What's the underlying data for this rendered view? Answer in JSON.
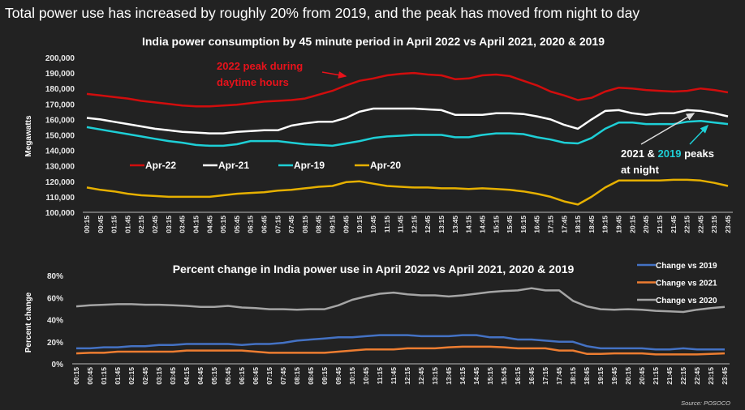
{
  "headline": "Total power use has increased by roughly 20% from 2019, and the peak has moved from night to day",
  "source": "Source: POSOCO",
  "chart_data": [
    {
      "type": "line",
      "title": "India power consumption by 45 minute period in April 2022 vs April 2021, 2020 & 2019",
      "xlabel": "",
      "ylabel": "Megawatts",
      "ylim": [
        100000,
        200000
      ],
      "yticks": [
        "100,000",
        "110,000",
        "120,000",
        "130,000",
        "140,000",
        "150,000",
        "160,000",
        "170,000",
        "180,000",
        "190,000",
        "200,000"
      ],
      "grid": false,
      "legend": "middle-left",
      "x": [
        "00:15",
        "00:45",
        "01:15",
        "01:45",
        "02:15",
        "02:45",
        "03:15",
        "03:45",
        "04:15",
        "04:45",
        "05:15",
        "05:45",
        "06:15",
        "06:45",
        "07:15",
        "07:45",
        "08:15",
        "08:45",
        "09:15",
        "09:45",
        "10:15",
        "10:45",
        "11:15",
        "11:45",
        "12:15",
        "12:45",
        "13:15",
        "13:45",
        "14:15",
        "14:45",
        "15:15",
        "15:45",
        "16:15",
        "16:45",
        "17:15",
        "17:45",
        "18:15",
        "18:45",
        "19:15",
        "19:45",
        "20:15",
        "20:45",
        "21:15",
        "21:45",
        "22:15",
        "22:45",
        "23:15",
        "23:45"
      ],
      "series": [
        {
          "name": "Apr-22",
          "color": "#d10d0d",
          "values": [
            176500,
            175500,
            174500,
            173500,
            172000,
            171000,
            170000,
            169000,
            168500,
            168500,
            169000,
            169500,
            170500,
            171500,
            172000,
            172500,
            173500,
            176000,
            178500,
            182000,
            185000,
            186500,
            188500,
            189500,
            190000,
            189000,
            188500,
            186000,
            186500,
            188500,
            189000,
            188000,
            185000,
            182000,
            178000,
            175500,
            172500,
            174000,
            178000,
            180500,
            180000,
            179000,
            178500,
            178000,
            178500,
            180000,
            179000,
            177500
          ]
        },
        {
          "name": "Apr-21",
          "color": "#ffffff",
          "values": [
            161000,
            160000,
            158500,
            157000,
            155500,
            154000,
            153000,
            152000,
            151500,
            151000,
            151000,
            152000,
            152500,
            153000,
            153000,
            156000,
            157500,
            158500,
            158500,
            161000,
            165000,
            167000,
            167000,
            167000,
            167000,
            166500,
            166000,
            163000,
            163000,
            163000,
            164000,
            164000,
            163500,
            162000,
            160000,
            156500,
            154000,
            160000,
            165500,
            166000,
            164000,
            163000,
            164000,
            164000,
            166000,
            165500,
            164000,
            162000
          ]
        },
        {
          "name": "Apr-19",
          "color": "#1ecfd6",
          "values": [
            155000,
            153500,
            152000,
            150500,
            149000,
            147500,
            146000,
            145000,
            143500,
            143000,
            143000,
            144000,
            146000,
            146000,
            146000,
            145000,
            144000,
            143500,
            143000,
            144500,
            146000,
            148000,
            149000,
            149500,
            150000,
            150000,
            150000,
            148500,
            148500,
            150000,
            151000,
            151000,
            150500,
            148500,
            147000,
            145000,
            144500,
            148000,
            154000,
            158000,
            158000,
            157000,
            157000,
            157000,
            158500,
            159000,
            158000,
            157000
          ]
        },
        {
          "name": "Apr-20",
          "color": "#e6b000",
          "values": [
            116000,
            114500,
            113500,
            112000,
            111000,
            110500,
            110000,
            110000,
            110000,
            110000,
            111000,
            112000,
            112500,
            113000,
            114000,
            114500,
            115500,
            116500,
            117000,
            119500,
            120000,
            118500,
            117000,
            116500,
            116000,
            116000,
            115500,
            115500,
            115000,
            115500,
            115000,
            114500,
            113500,
            112000,
            110000,
            107000,
            105000,
            110000,
            116000,
            120500,
            120500,
            120500,
            120500,
            121000,
            121000,
            120500,
            119000,
            117000
          ]
        }
      ],
      "annotations": [
        {
          "text_lines": [
            "2022 peak during",
            "daytime hours"
          ],
          "color": "#e8121b"
        },
        {
          "text_parts": [
            "2021 & ",
            "2019",
            " peaks"
          ],
          "text_line2": "at night",
          "colors": [
            "#ffffff",
            "#1ecfd6",
            "#ffffff"
          ]
        }
      ]
    },
    {
      "type": "line",
      "title": "Percent change in India power use in April 2022 vs April 2021, 2020 & 2019",
      "xlabel": "",
      "ylabel": "Percent change",
      "ylim": [
        0,
        80
      ],
      "yticks": [
        "0%",
        "20%",
        "40%",
        "60%",
        "80%"
      ],
      "grid": false,
      "legend": "top-right",
      "x": [
        "00:15",
        "00:45",
        "01:15",
        "01:45",
        "02:15",
        "02:45",
        "03:15",
        "03:45",
        "04:15",
        "04:45",
        "05:15",
        "05:45",
        "06:15",
        "06:45",
        "07:15",
        "07:45",
        "08:15",
        "08:45",
        "09:15",
        "09:45",
        "10:15",
        "10:45",
        "11:15",
        "11:45",
        "12:15",
        "12:45",
        "13:15",
        "13:45",
        "14:15",
        "14:45",
        "15:15",
        "15:45",
        "16:15",
        "16:45",
        "17:15",
        "17:45",
        "18:15",
        "18:45",
        "19:15",
        "19:45",
        "20:15",
        "20:45",
        "21:15",
        "21:45",
        "22:15",
        "22:45",
        "23:15",
        "23:45"
      ],
      "series": [
        {
          "name": "Change vs 2019",
          "color": "#4472c4",
          "values": [
            14,
            14,
            15,
            15,
            16,
            16,
            17,
            17,
            18,
            18,
            18,
            18,
            17,
            18,
            18,
            19,
            21,
            22,
            23,
            24,
            24,
            25,
            26,
            26,
            26,
            25,
            25,
            25,
            26,
            26,
            24,
            24,
            22,
            22,
            21,
            20,
            20,
            16,
            14,
            14,
            14,
            14,
            13,
            13,
            14,
            13,
            13,
            13
          ]
        },
        {
          "name": "Change vs 2021",
          "color": "#ed7d31",
          "values": [
            9.5,
            10,
            10,
            11,
            11,
            11,
            11,
            11,
            12,
            12,
            12,
            12,
            12,
            11,
            10,
            10,
            10,
            10,
            10,
            11,
            12,
            13,
            13,
            13,
            14,
            14,
            14,
            15,
            15.5,
            15.5,
            15.5,
            15,
            14,
            14,
            14,
            12,
            12,
            9,
            9,
            9.5,
            9.5,
            9.5,
            8.5,
            8.5,
            8.5,
            8.5,
            9,
            9.5
          ]
        },
        {
          "name": "Change vs 2020",
          "color": "#a5a5a5",
          "values": [
            52,
            53,
            53.5,
            54,
            54,
            53.5,
            53.5,
            53,
            52.5,
            51.5,
            51.5,
            52.5,
            51,
            50.5,
            49.5,
            49.5,
            49,
            49.5,
            49.5,
            53,
            58,
            61,
            63.5,
            64.5,
            63,
            62,
            62,
            61,
            62,
            63.5,
            65,
            66,
            66.5,
            68.5,
            66.5,
            66.5,
            57,
            52,
            49.5,
            49,
            49.5,
            49,
            48,
            47.5,
            47,
            49,
            50.5,
            51.5
          ]
        }
      ]
    }
  ]
}
